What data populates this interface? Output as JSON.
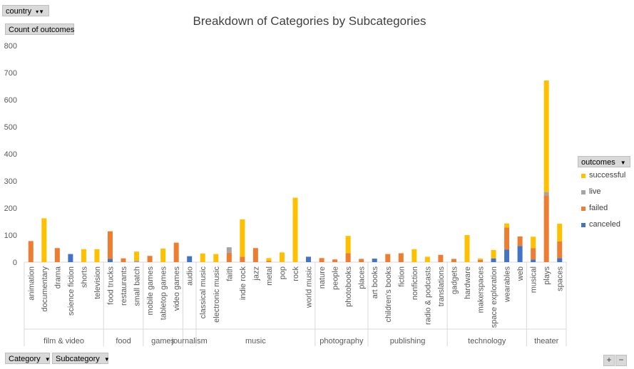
{
  "filters": {
    "country_label": "country",
    "count_label": "Count of outcomes",
    "category_label": "Category",
    "subcategory_label": "Subcategory",
    "legend_label": "outcomes"
  },
  "zoom": {
    "plus": "+",
    "minus": "−"
  },
  "icons": [
    "dropdown-arrow-icon",
    "filter-icon",
    "zoom-in-icon",
    "zoom-out-icon"
  ],
  "chart_data": {
    "type": "bar",
    "stacked": true,
    "title": "Breakdown of Categories by Subcategories",
    "ylabel": "",
    "xlabel": "",
    "ylim": [
      0,
      800
    ],
    "yticks": [
      0,
      100,
      200,
      300,
      400,
      500,
      600,
      700,
      800
    ],
    "grid": false,
    "legend_position": "right",
    "groups": [
      {
        "name": "film & video",
        "categories": [
          "animation",
          "documentary",
          "drama",
          "science fiction",
          "shorts",
          "television"
        ]
      },
      {
        "name": "food",
        "categories": [
          "food trucks",
          "restaurants",
          "small batch"
        ]
      },
      {
        "name": "games",
        "categories": [
          "mobile games",
          "tabletop games",
          "video games"
        ]
      },
      {
        "name": "journalism",
        "categories": [
          "audio"
        ]
      },
      {
        "name": "music",
        "categories": [
          "classical music",
          "electronic music",
          "faith",
          "indie rock",
          "jazz",
          "metal",
          "pop",
          "rock",
          "world music"
        ]
      },
      {
        "name": "photography",
        "categories": [
          "nature",
          "people",
          "photobooks",
          "places"
        ]
      },
      {
        "name": "publishing",
        "categories": [
          "art books",
          "children's books",
          "fiction",
          "nonfiction",
          "radio & podcasts",
          "translations"
        ]
      },
      {
        "name": "technology",
        "categories": [
          "gadgets",
          "hardware",
          "makerspaces",
          "space exploration",
          "wearables",
          "web"
        ]
      },
      {
        "name": "theater",
        "categories": [
          "musical",
          "plays",
          "spaces"
        ]
      }
    ],
    "categories": [
      "animation",
      "documentary",
      "drama",
      "science fiction",
      "shorts",
      "television",
      "food trucks",
      "restaurants",
      "small batch",
      "mobile games",
      "tabletop games",
      "video games",
      "audio",
      "classical music",
      "electronic music",
      "faith",
      "indie rock",
      "jazz",
      "metal",
      "pop",
      "rock",
      "world music",
      "nature",
      "people",
      "photobooks",
      "places",
      "art books",
      "children's books",
      "fiction",
      "nonfiction",
      "radio & podcasts",
      "translations",
      "gadgets",
      "hardware",
      "makerspaces",
      "space exploration",
      "wearables",
      "web",
      "musical",
      "plays",
      "spaces"
    ],
    "series": [
      {
        "name": "canceled",
        "color": "#4472c4",
        "values": [
          0,
          0,
          0,
          30,
          0,
          0,
          12,
          0,
          0,
          0,
          0,
          0,
          22,
          0,
          0,
          0,
          0,
          0,
          0,
          0,
          0,
          20,
          0,
          0,
          0,
          0,
          13,
          0,
          0,
          0,
          0,
          0,
          0,
          0,
          0,
          14,
          46,
          60,
          10,
          0,
          15
        ]
      },
      {
        "name": "failed",
        "color": "#ed7d31",
        "values": [
          78,
          0,
          52,
          0,
          0,
          0,
          102,
          14,
          0,
          23,
          0,
          72,
          0,
          0,
          0,
          35,
          20,
          52,
          5,
          0,
          0,
          0,
          15,
          10,
          33,
          12,
          0,
          30,
          33,
          0,
          0,
          27,
          12,
          0,
          8,
          0,
          82,
          35,
          42,
          247,
          62
        ]
      },
      {
        "name": "live",
        "color": "#a5a5a5",
        "values": [
          0,
          0,
          0,
          0,
          0,
          0,
          0,
          0,
          5,
          0,
          0,
          0,
          0,
          0,
          0,
          20,
          0,
          0,
          0,
          0,
          0,
          0,
          0,
          0,
          0,
          0,
          0,
          0,
          0,
          0,
          0,
          0,
          0,
          0,
          0,
          0,
          0,
          0,
          0,
          12,
          0
        ]
      },
      {
        "name": "successful",
        "color": "#ffc000",
        "values": [
          0,
          162,
          0,
          0,
          48,
          48,
          0,
          0,
          34,
          0,
          50,
          0,
          0,
          32,
          30,
          0,
          138,
          0,
          10,
          36,
          238,
          0,
          0,
          0,
          64,
          0,
          0,
          0,
          0,
          48,
          20,
          0,
          0,
          100,
          5,
          31,
          15,
          0,
          42,
          412,
          65
        ]
      }
    ]
  }
}
